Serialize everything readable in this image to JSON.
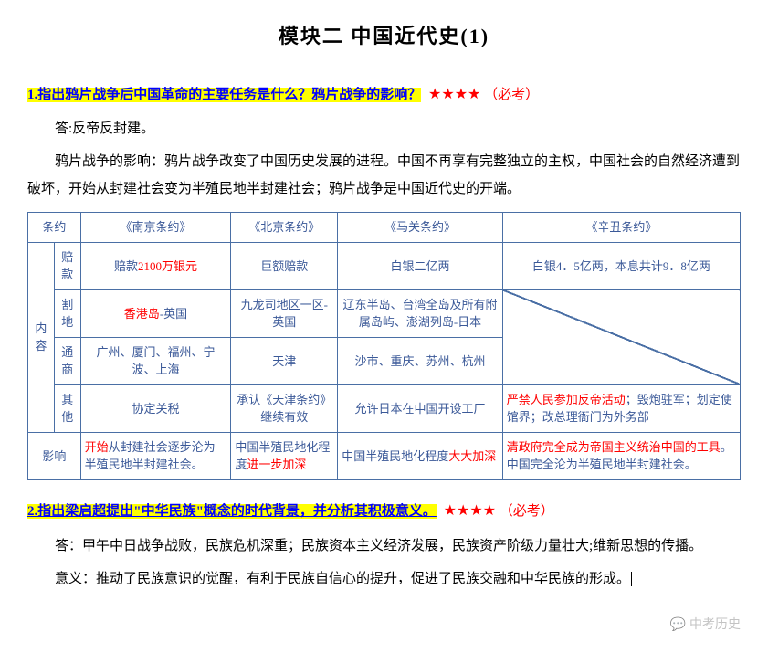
{
  "title": "模块二  中国近代史(1)",
  "q1": {
    "label": "1.指出鸦片战争后中国革命的主要任务是什么？鸦片战争的影响？",
    "stars": "★★★★",
    "tag": "（必考）",
    "answer": "答:反帝反封建。",
    "body": "鸦片战争的影响：鸦片战争改变了中国历史发展的进程。中国不再享有完整独立的主权，中国社会的自然经济遭到破坏，开始从封建社会变为半殖民地半封建社会；鸦片战争是中国近代史的开端。"
  },
  "table": {
    "headers": {
      "col0": "条约",
      "col1": "《南京条约》",
      "col2": "《北京条约》",
      "col3": "《马关条约》",
      "col4": "《辛丑条约》"
    },
    "contentLabel": "内容",
    "rows": {
      "peikuan": {
        "label": "赔款",
        "c1a": "赔款",
        "c1b": "2100万银元",
        "c2": "巨额赔款",
        "c3": "白银二亿两",
        "c4": "白银4．5亿两，本息共计9．8亿两"
      },
      "gedi": {
        "label": "割地",
        "c1a": "香港岛",
        "c1b": "-英国",
        "c2": "九龙司地区一区-英国",
        "c3": "辽东半岛、台湾全岛及所有附属岛屿、澎湖列岛-日本",
        "c4": ""
      },
      "tongshang": {
        "label": "通商",
        "c1": "广州、厦门、福州、宁波、上海",
        "c2": "天津",
        "c3": "沙市、重庆、苏州、杭州",
        "c4": ""
      },
      "qita": {
        "label": "其他",
        "c1": "协定关税",
        "c2": "承认《天津条约》继续有效",
        "c3": "允许日本在中国开设工厂",
        "c4a": "严禁人民参加反帝活动",
        "c4b": "；毁炮驻军；划定使馆界；改总理衙门为外务部"
      },
      "yingxiang": {
        "label": "影响",
        "c1a": "开始",
        "c1b": "从封建社会逐步沦为半殖民地半封建社会。",
        "c2a": "中国半殖民地化程度",
        "c2b": "进一步加深",
        "c3a": "中国半殖民地化程度",
        "c3b": "大大加深",
        "c4a": "清政府完全成为帝国主义统治中国的工具",
        "c4b": "。中国完全沦为半殖民地半封建社会。"
      }
    }
  },
  "q2": {
    "label": "2.指出梁启超提出\"中华民族\"概念的时代背景，并分析其积极意义。",
    "stars": "★★★★",
    "tag": "（必考）",
    "answer": "答：甲午中日战争战败，民族危机深重；民族资本主义经济发展，民族资产阶级力量壮大;维新思想的传播。",
    "meaning": "意义：推动了民族意识的觉醒，有利于民族自信心的提升，促进了民族交融和中华民族的形成。"
  },
  "watermark": "中考历史"
}
